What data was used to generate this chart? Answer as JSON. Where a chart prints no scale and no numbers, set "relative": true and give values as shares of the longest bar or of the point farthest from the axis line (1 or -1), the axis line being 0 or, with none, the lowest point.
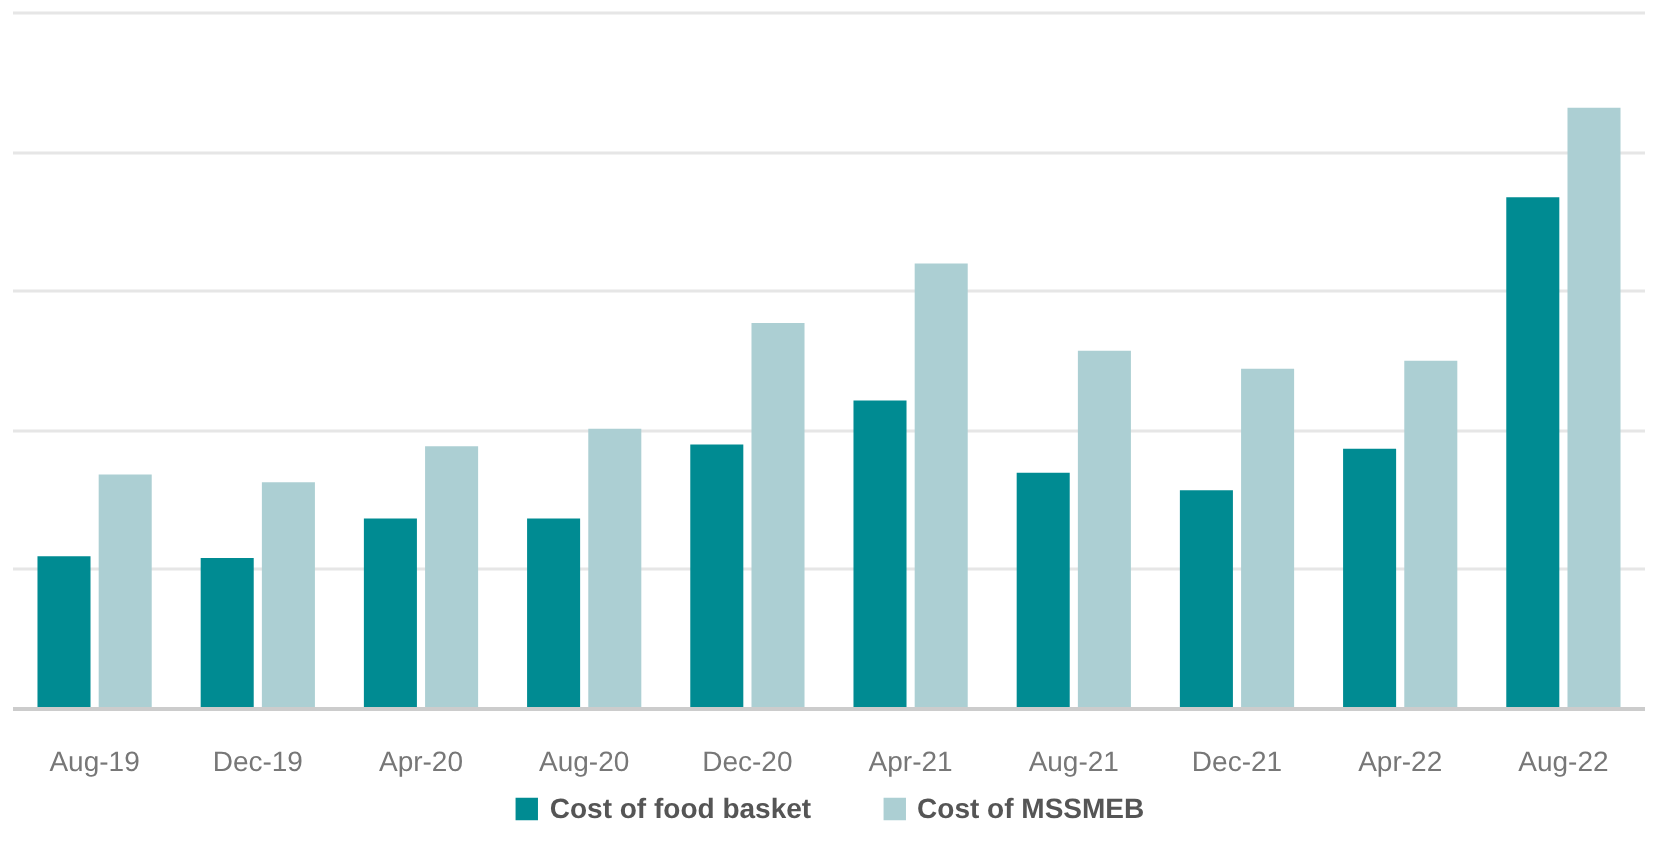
{
  "chart_data": {
    "type": "bar",
    "categories": [
      "Aug-19",
      "Dec-19",
      "Apr-20",
      "Aug-20",
      "Dec-20",
      "Apr-21",
      "Aug-21",
      "Dec-21",
      "Apr-22",
      "Aug-22"
    ],
    "series": [
      {
        "name": "Cost of food basket",
        "color": "#008b92",
        "values": [
          0.254,
          0.251,
          0.317,
          0.317,
          0.44,
          0.513,
          0.393,
          0.364,
          0.433,
          0.851
        ]
      },
      {
        "name": "Cost of MSSMEB",
        "color": "#accfd3",
        "values": [
          0.39,
          0.377,
          0.437,
          0.466,
          0.642,
          0.741,
          0.596,
          0.566,
          0.579,
          1
        ]
      }
    ],
    "relative": true,
    "grid": "y",
    "legend": "bottom"
  }
}
